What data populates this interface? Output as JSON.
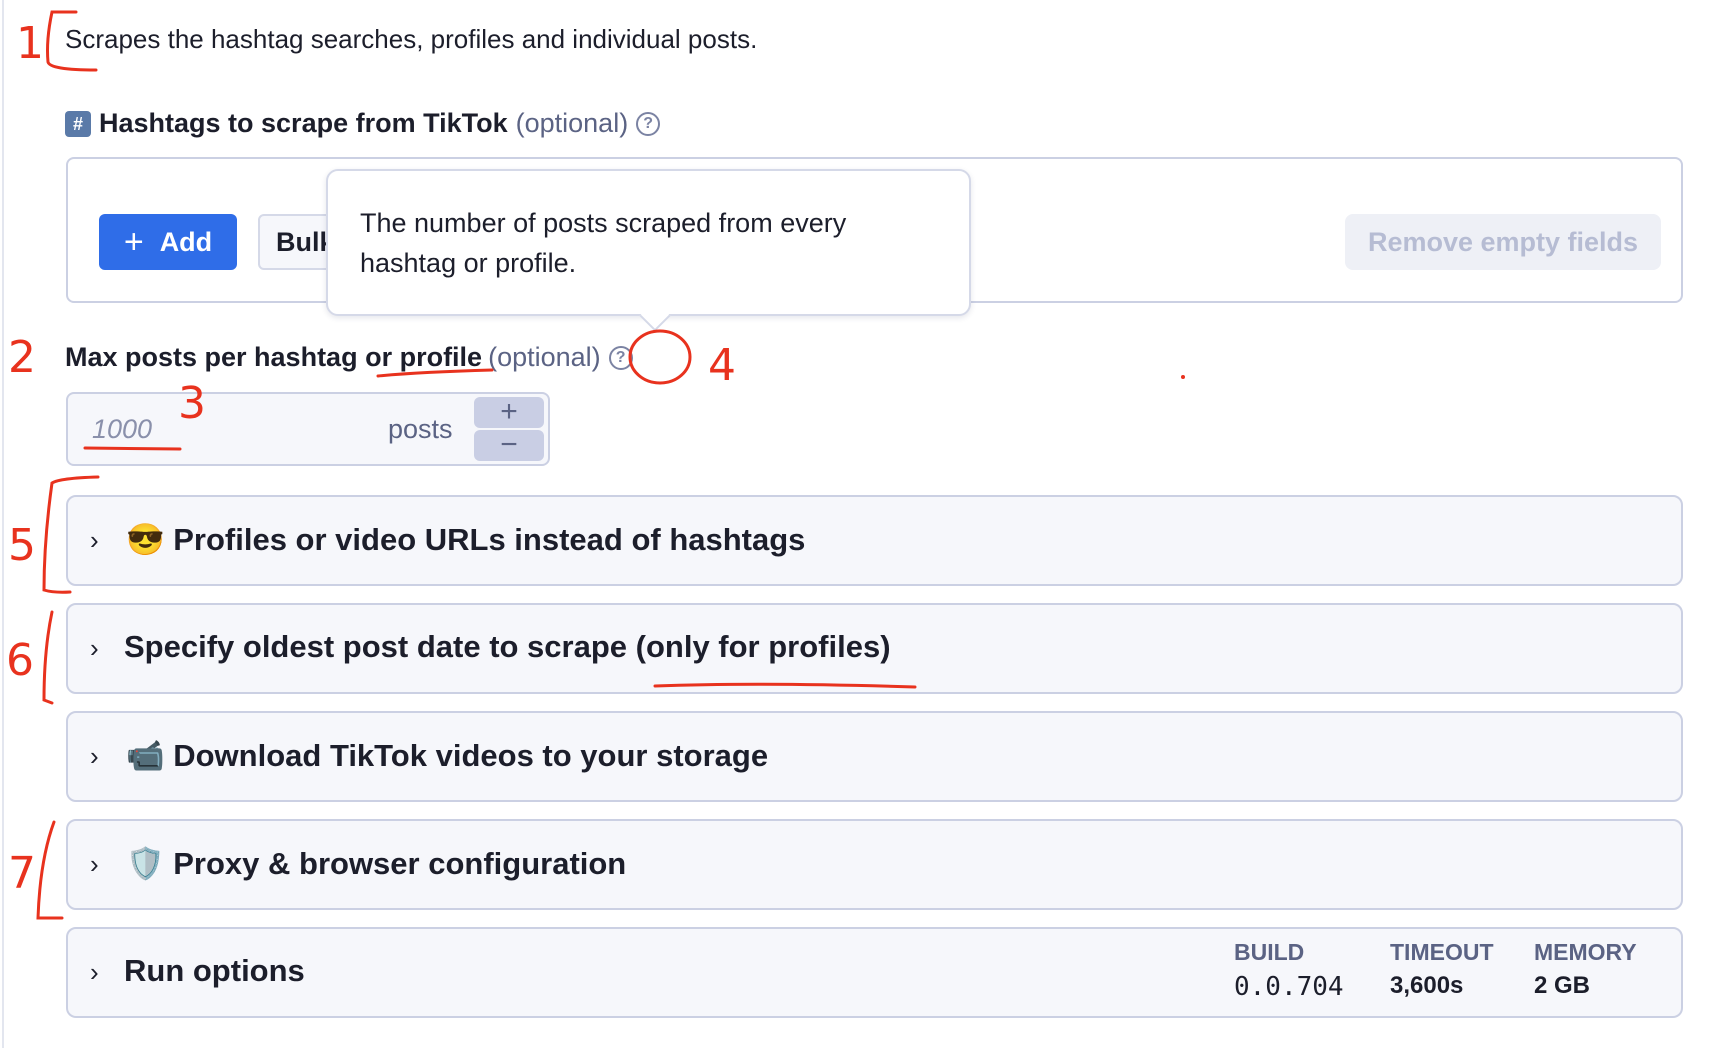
{
  "description": "Scrapes the hashtag searches, profiles and individual posts.",
  "hashtags_field": {
    "icon": "hash-keycap-icon",
    "icon_glyph": "#",
    "label": "Hashtags to scrape from TikTok",
    "optional": "(optional)",
    "help_glyph": "?",
    "add_label": "Add",
    "add_glyph": "+",
    "bulk_label": "Bulk",
    "remove_empty_label": "Remove empty fields"
  },
  "tooltip": {
    "text": "The number of posts scraped from every hashtag or profile."
  },
  "max_posts_field": {
    "label": "Max posts per hashtag or profile",
    "optional": "(optional)",
    "help_glyph": "?",
    "placeholder": "1000",
    "unit": "posts",
    "increment_glyph": "+",
    "decrement_glyph": "−"
  },
  "sections": [
    {
      "emoji": "😎",
      "title": "Profiles or video URLs instead of hashtags"
    },
    {
      "emoji": "",
      "title": "Specify oldest post date to scrape (only for profiles)"
    },
    {
      "emoji": "📹",
      "title": "Download TikTok videos to your storage"
    },
    {
      "emoji": "🛡️",
      "title": "Proxy & browser configuration"
    },
    {
      "emoji": "",
      "title": "Run options"
    }
  ],
  "run_options": {
    "build_label": "BUILD",
    "build_value": "0.0.704",
    "timeout_label": "TIMEOUT",
    "timeout_value": "3,600s",
    "memory_label": "MEMORY",
    "memory_value": "2 GB"
  },
  "chevron_glyph": "›",
  "annotations": {
    "color": "#e8321e",
    "labels": [
      "1",
      "2",
      "3",
      "4",
      "5",
      "6",
      "7"
    ]
  },
  "colors": {
    "primary": "#2f6de8",
    "border": "#cbd0e3",
    "muted": "#5b6384"
  }
}
